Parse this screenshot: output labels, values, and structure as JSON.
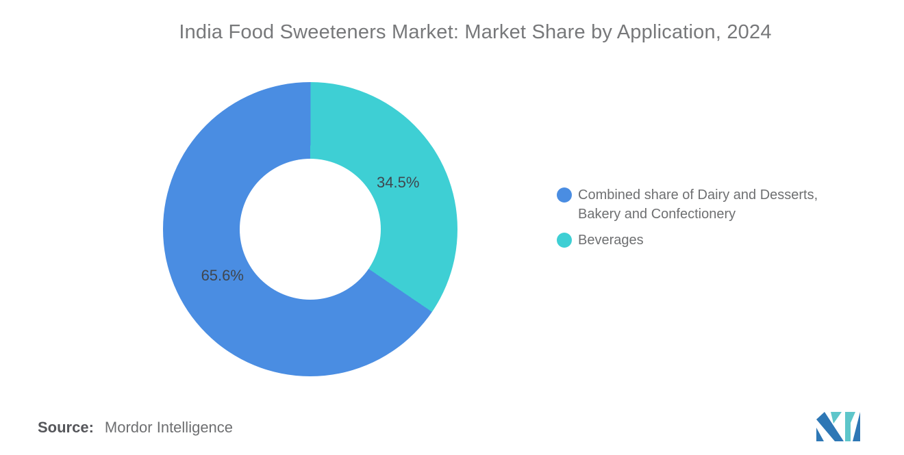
{
  "chart_data": {
    "type": "pie",
    "subtype": "donut",
    "title": "India Food Sweeteners Market: Market Share by Application, 2024",
    "segments": [
      {
        "label": "Combined share of Dairy and Desserts, Bakery and Confectionery",
        "value": 65.6,
        "data_label": "65.6%",
        "color": "#4A8DE2"
      },
      {
        "label": "Beverages",
        "value": 34.5,
        "data_label": "34.5%",
        "color": "#3ECFD4"
      }
    ],
    "start_angle_deg": 124.2,
    "inner_radius_pct": 48,
    "legend_position": "right",
    "data_labels": "inside",
    "background": "#FFFFFF"
  },
  "source": {
    "label": "Source:",
    "value": "Mordor Intelligence"
  },
  "logo": {
    "name": "mordor-intelligence-logo",
    "blue": "#2E77B5",
    "teal": "#5EC6CA"
  },
  "text_colors": {
    "title": "#77787A",
    "slice_label": "#3F464E",
    "legend": "#6E6F71",
    "source": "#55565A"
  }
}
